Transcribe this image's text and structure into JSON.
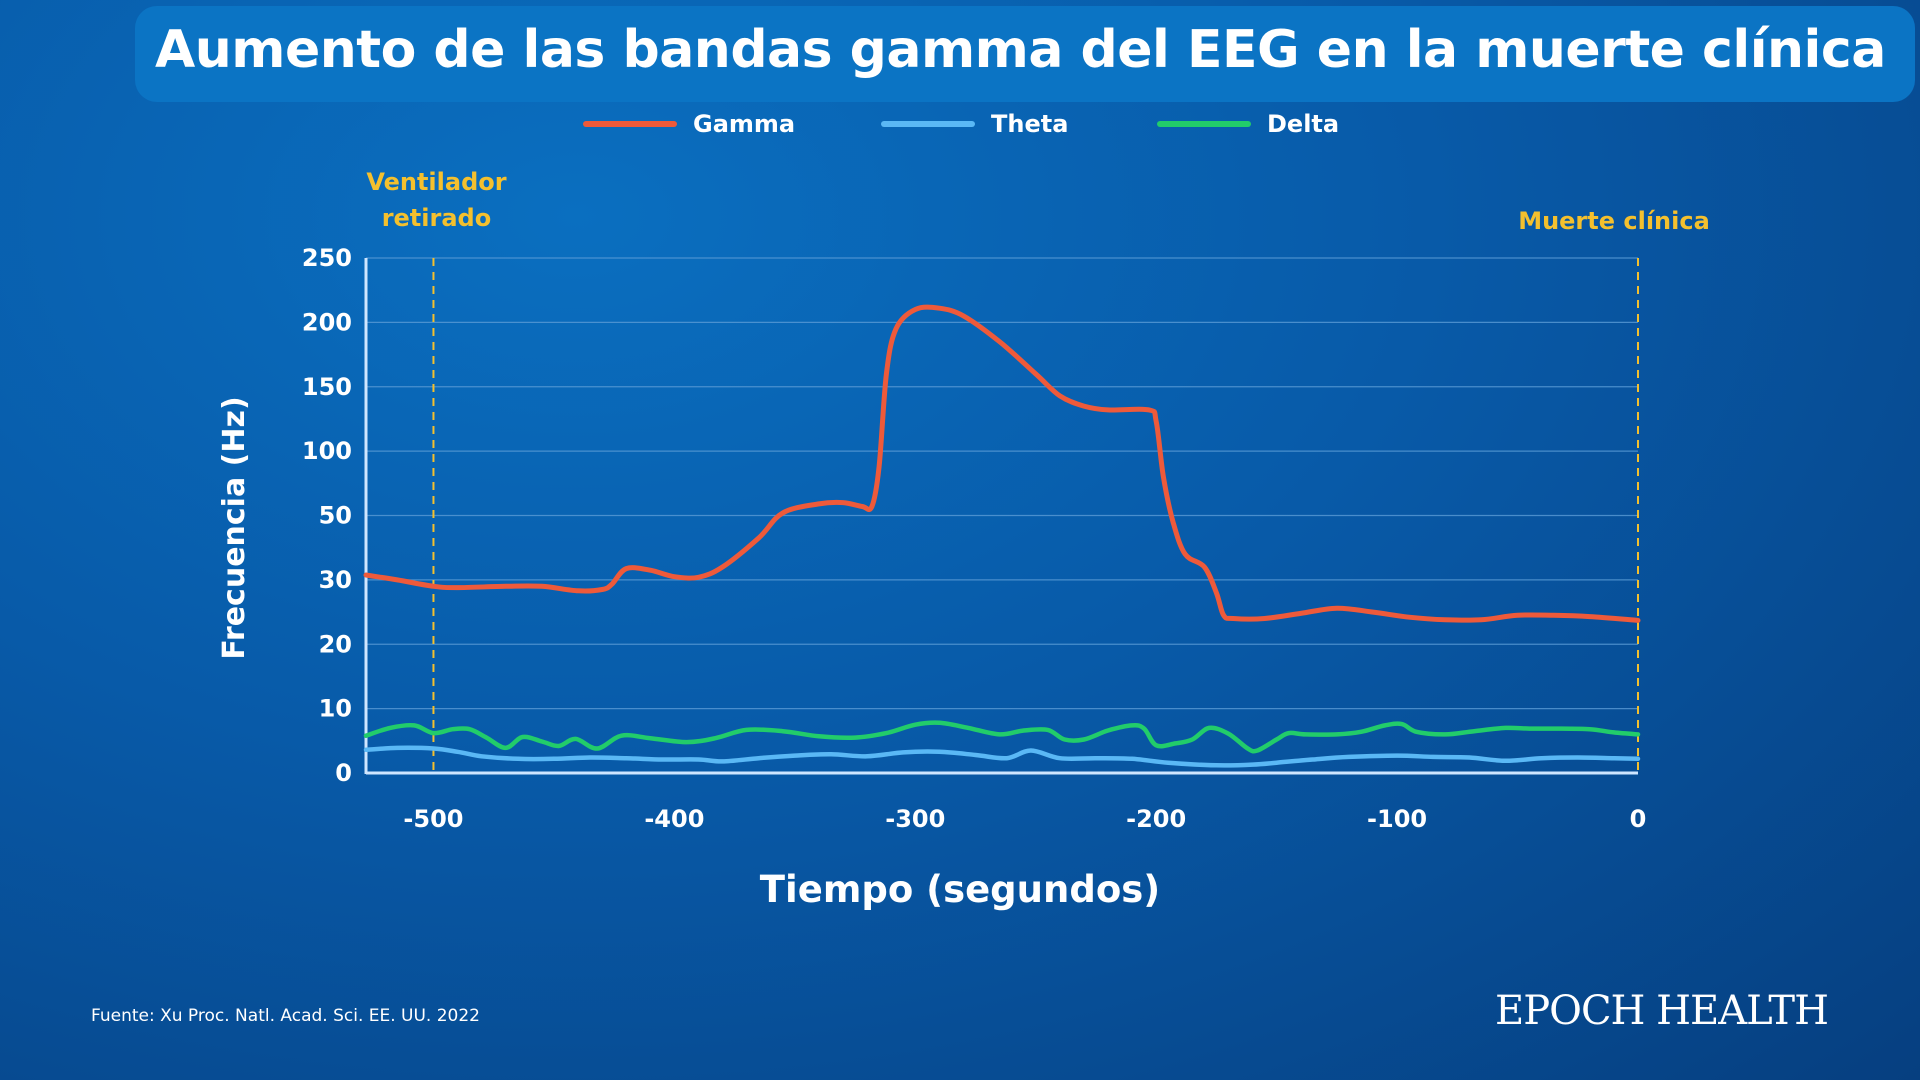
{
  "title": "Aumento de las bandas gamma del EEG en la muerte clínica",
  "source": "Fuente: Xu Proc. Natl. Acad. Sci. EE. UU. 2022",
  "brand": "EPOCH HEALTH",
  "colors": {
    "gamma": "#ee5a3a",
    "theta": "#5ab8f5",
    "delta": "#22cc6a",
    "annotation": "#f4c02e",
    "grid": "#5a9bd6"
  },
  "chart_data": {
    "type": "line",
    "xlabel": "Tiempo (segundos)",
    "ylabel": "Frecuencia (Hz)",
    "xlim": [
      -528,
      0
    ],
    "x_ticks": [
      -500,
      -400,
      -300,
      -200,
      -100,
      0
    ],
    "y_tick_labels": [
      "0",
      "10",
      "20",
      "30",
      "50",
      "100",
      "150",
      "200",
      "250"
    ],
    "y_scale": "piecewise (0–30 in steps of 10, then 50–250 in steps of 50, equally spaced)",
    "grid": true,
    "legend_position": "top",
    "annotations": [
      {
        "x": -500,
        "label": "Ventilador retirado"
      },
      {
        "x": 0,
        "label": "Muerte clínica"
      }
    ],
    "series": [
      {
        "name": "Gamma",
        "points": [
          [
            -528,
            31.5
          ],
          [
            -515,
            30
          ],
          [
            -500,
            29
          ],
          [
            -490,
            28.8
          ],
          [
            -470,
            29
          ],
          [
            -455,
            29
          ],
          [
            -440,
            28.3
          ],
          [
            -430,
            28.5
          ],
          [
            -426,
            29.3
          ],
          [
            -420,
            33.5
          ],
          [
            -410,
            33
          ],
          [
            -400,
            31
          ],
          [
            -390,
            30.8
          ],
          [
            -380,
            34
          ],
          [
            -365,
            43
          ],
          [
            -355,
            52
          ],
          [
            -340,
            59
          ],
          [
            -330,
            60
          ],
          [
            -322,
            57
          ],
          [
            -318,
            57
          ],
          [
            -315,
            88
          ],
          [
            -312,
            160
          ],
          [
            -308,
            195
          ],
          [
            -300,
            210
          ],
          [
            -290,
            211
          ],
          [
            -280,
            205
          ],
          [
            -265,
            185
          ],
          [
            -250,
            160
          ],
          [
            -240,
            143
          ],
          [
            -230,
            135
          ],
          [
            -220,
            132
          ],
          [
            -203,
            132
          ],
          [
            -200,
            123
          ],
          [
            -197,
            80
          ],
          [
            -193,
            48
          ],
          [
            -188,
            38
          ],
          [
            -180,
            34
          ],
          [
            -175,
            28
          ],
          [
            -172,
            24.5
          ],
          [
            -168,
            24
          ],
          [
            -155,
            24
          ],
          [
            -140,
            24.8
          ],
          [
            -125,
            25.6
          ],
          [
            -110,
            25
          ],
          [
            -95,
            24.2
          ],
          [
            -80,
            23.8
          ],
          [
            -65,
            23.8
          ],
          [
            -50,
            24.5
          ],
          [
            -35,
            24.5
          ],
          [
            -20,
            24.3
          ],
          [
            0,
            23.7
          ]
        ]
      },
      {
        "name": "Theta",
        "points": [
          [
            -528,
            3.6
          ],
          [
            -515,
            3.9
          ],
          [
            -500,
            3.8
          ],
          [
            -490,
            3.3
          ],
          [
            -480,
            2.6
          ],
          [
            -465,
            2.2
          ],
          [
            -450,
            2.2
          ],
          [
            -435,
            2.4
          ],
          [
            -420,
            2.3
          ],
          [
            -405,
            2.1
          ],
          [
            -390,
            2.1
          ],
          [
            -380,
            1.8
          ],
          [
            -365,
            2.3
          ],
          [
            -350,
            2.7
          ],
          [
            -335,
            2.9
          ],
          [
            -320,
            2.6
          ],
          [
            -305,
            3.2
          ],
          [
            -290,
            3.3
          ],
          [
            -275,
            2.8
          ],
          [
            -262,
            2.3
          ],
          [
            -252,
            3.5
          ],
          [
            -240,
            2.3
          ],
          [
            -225,
            2.3
          ],
          [
            -210,
            2.2
          ],
          [
            -195,
            1.6
          ],
          [
            -175,
            1.2
          ],
          [
            -160,
            1.3
          ],
          [
            -150,
            1.6
          ],
          [
            -135,
            2.1
          ],
          [
            -120,
            2.5
          ],
          [
            -100,
            2.7
          ],
          [
            -85,
            2.5
          ],
          [
            -70,
            2.4
          ],
          [
            -55,
            1.9
          ],
          [
            -40,
            2.3
          ],
          [
            -25,
            2.4
          ],
          [
            -10,
            2.3
          ],
          [
            0,
            2.2
          ]
        ]
      },
      {
        "name": "Delta",
        "points": [
          [
            -528,
            5.8
          ],
          [
            -518,
            7
          ],
          [
            -508,
            7.4
          ],
          [
            -500,
            6.2
          ],
          [
            -492,
            6.8
          ],
          [
            -485,
            6.8
          ],
          [
            -478,
            5.5
          ],
          [
            -470,
            3.9
          ],
          [
            -463,
            5.6
          ],
          [
            -455,
            4.9
          ],
          [
            -448,
            4.2
          ],
          [
            -441,
            5.3
          ],
          [
            -432,
            3.8
          ],
          [
            -422,
            5.8
          ],
          [
            -410,
            5.4
          ],
          [
            -395,
            4.8
          ],
          [
            -383,
            5.4
          ],
          [
            -370,
            6.7
          ],
          [
            -355,
            6.5
          ],
          [
            -340,
            5.7
          ],
          [
            -325,
            5.5
          ],
          [
            -312,
            6.2
          ],
          [
            -300,
            7.5
          ],
          [
            -290,
            7.8
          ],
          [
            -278,
            7
          ],
          [
            -265,
            6
          ],
          [
            -255,
            6.6
          ],
          [
            -245,
            6.7
          ],
          [
            -238,
            5.2
          ],
          [
            -230,
            5.2
          ],
          [
            -220,
            6.6
          ],
          [
            -210,
            7.4
          ],
          [
            -205,
            6.9
          ],
          [
            -200,
            4.3
          ],
          [
            -192,
            4.6
          ],
          [
            -185,
            5.2
          ],
          [
            -178,
            7
          ],
          [
            -170,
            6.1
          ],
          [
            -162,
            3.8
          ],
          [
            -158,
            3.5
          ],
          [
            -150,
            5.2
          ],
          [
            -145,
            6.2
          ],
          [
            -138,
            6
          ],
          [
            -125,
            6
          ],
          [
            -115,
            6.4
          ],
          [
            -105,
            7.4
          ],
          [
            -98,
            7.6
          ],
          [
            -92,
            6.4
          ],
          [
            -80,
            6
          ],
          [
            -68,
            6.5
          ],
          [
            -55,
            7
          ],
          [
            -45,
            6.9
          ],
          [
            -35,
            6.9
          ],
          [
            -20,
            6.8
          ],
          [
            -10,
            6.3
          ],
          [
            0,
            6
          ]
        ]
      }
    ]
  }
}
